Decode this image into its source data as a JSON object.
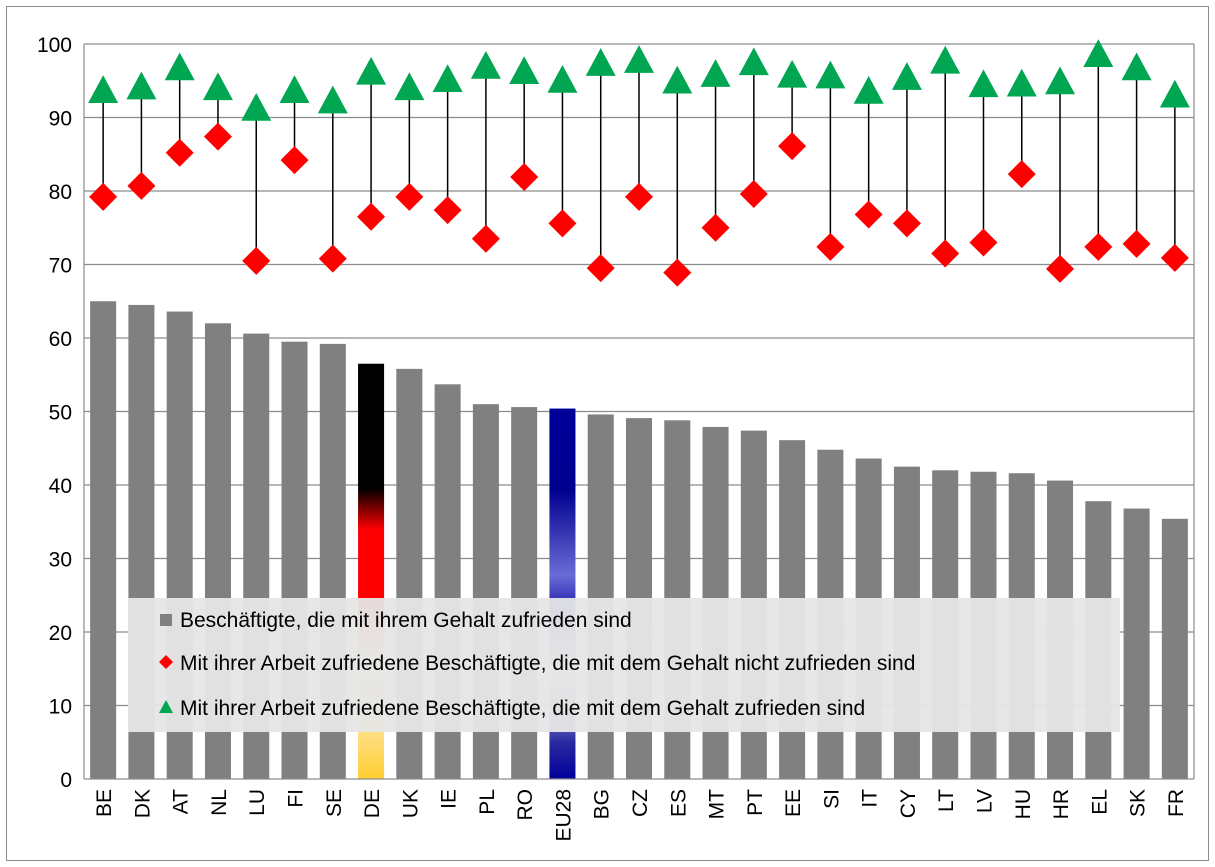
{
  "chart_data": {
    "type": "bar",
    "categories": [
      "BE",
      "DK",
      "AT",
      "NL",
      "LU",
      "FI",
      "SE",
      "DE",
      "UK",
      "IE",
      "PL",
      "RO",
      "EU28",
      "BG",
      "CZ",
      "ES",
      "MT",
      "PT",
      "EE",
      "SI",
      "IT",
      "CY",
      "LT",
      "LV",
      "HU",
      "HR",
      "EL",
      "SK",
      "FR"
    ],
    "series": [
      {
        "name": "Beschäftigte, die mit ihrem Gehalt zufrieden sind",
        "marker": "bar",
        "color": "#808080",
        "values": [
          65.0,
          64.5,
          63.6,
          62.0,
          60.6,
          59.5,
          59.2,
          56.5,
          55.8,
          53.7,
          51.0,
          50.6,
          50.4,
          49.6,
          49.1,
          48.8,
          47.9,
          47.4,
          46.1,
          44.8,
          43.6,
          42.5,
          42.0,
          41.8,
          41.6,
          40.6,
          37.8,
          36.8,
          35.4
        ]
      },
      {
        "name": "Mit ihrer Arbeit zufriedene Beschäftigte, die mit dem Gehalt nicht zufrieden sind",
        "marker": "diamond",
        "color": "#ff0000",
        "values": [
          79.2,
          80.7,
          85.2,
          87.4,
          70.5,
          84.2,
          70.8,
          76.5,
          79.2,
          77.4,
          73.5,
          81.9,
          75.6,
          69.5,
          79.2,
          68.9,
          75.0,
          79.6,
          86.1,
          72.4,
          76.8,
          75.6,
          71.5,
          73.0,
          82.3,
          69.4,
          72.4,
          72.8,
          70.9
        ]
      },
      {
        "name": "Mit ihrer Arbeit zufriedene Beschäftigte, die mit dem Gehalt zufrieden sind",
        "marker": "triangle",
        "color": "#00a651",
        "values": [
          93.7,
          94.2,
          96.8,
          94.1,
          91.3,
          93.7,
          92.3,
          96.2,
          94.1,
          95.2,
          97.0,
          96.3,
          95.1,
          97.4,
          97.8,
          95.0,
          95.9,
          97.5,
          95.8,
          95.7,
          93.6,
          95.5,
          97.7,
          94.5,
          94.6,
          94.9,
          98.6,
          96.8,
          93.1
        ]
      }
    ],
    "special_bars": {
      "DE": {
        "style": "german-flag",
        "colors": [
          "#000000",
          "#ff0000",
          "#ffce00"
        ]
      },
      "EU28": {
        "style": "eu-flag",
        "colors": [
          "#000099",
          "#ffcc00"
        ]
      }
    },
    "y_ticks": [
      "0",
      "10",
      "20",
      "30",
      "40",
      "50",
      "60",
      "70",
      "80",
      "90",
      "100"
    ],
    "ylim": [
      0,
      100
    ],
    "grid": true,
    "legend_position": "bottom-center, overlaid on bars",
    "title": "",
    "xlabel": "",
    "ylabel": ""
  }
}
